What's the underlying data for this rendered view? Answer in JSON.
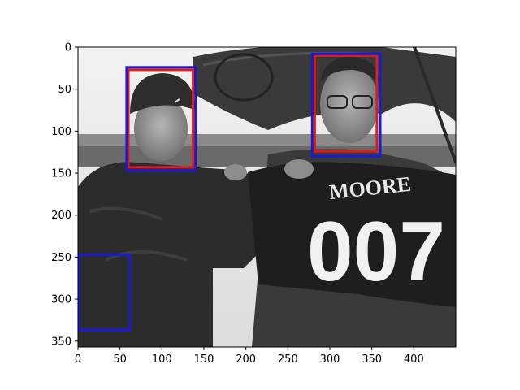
{
  "image": {
    "description_free": true,
    "width": 450,
    "height": 357
  },
  "axes": {
    "x_ticks": [
      "0",
      "50",
      "100",
      "150",
      "200",
      "250",
      "300",
      "350",
      "400"
    ],
    "x_tick_values": [
      0,
      50,
      100,
      150,
      200,
      250,
      300,
      350,
      400
    ],
    "y_ticks": [
      "0",
      "50",
      "100",
      "150",
      "200",
      "250",
      "300",
      "350"
    ],
    "y_tick_values": [
      0,
      50,
      100,
      150,
      200,
      250,
      300,
      350
    ]
  },
  "photo_text": {
    "shirt_name": "MOORE",
    "shirt_number": "007"
  },
  "boxes": [
    {
      "name": "face-box-red-left",
      "color": "#e11b1b",
      "x0": 60,
      "y0": 27,
      "x1": 137,
      "y1": 143
    },
    {
      "name": "face-box-blue-left",
      "color": "#1a1ad6",
      "x0": 58,
      "y0": 24,
      "x1": 140,
      "y1": 147
    },
    {
      "name": "face-box-red-right",
      "color": "#e11b1b",
      "x0": 282,
      "y0": 10,
      "x1": 356,
      "y1": 124
    },
    {
      "name": "face-box-blue-right",
      "color": "#1a1ad6",
      "x0": 279,
      "y0": 8,
      "x1": 360,
      "y1": 130
    },
    {
      "name": "false-detection-box",
      "color": "#1a1ad6",
      "x0": 1,
      "y0": 247,
      "x1": 62,
      "y1": 337
    }
  ]
}
